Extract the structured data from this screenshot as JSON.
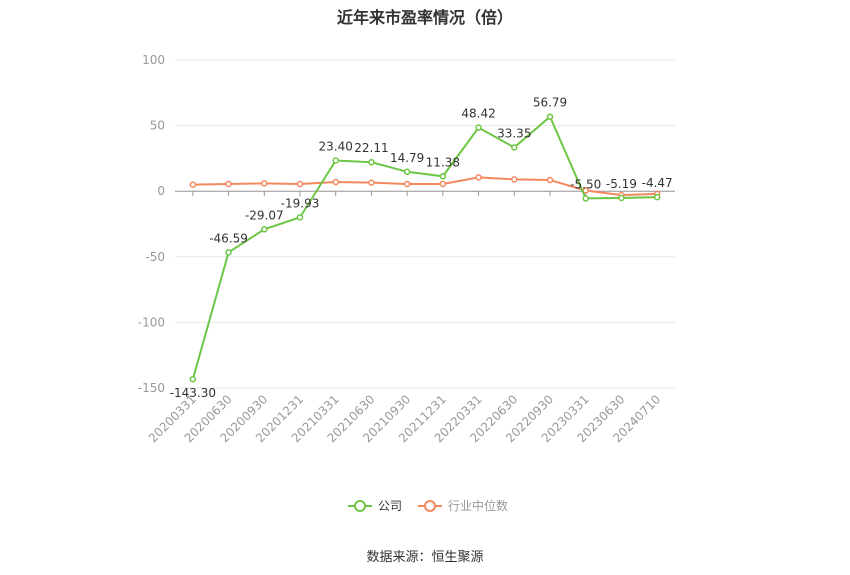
{
  "title": "近年来市盈率情况（倍）",
  "source": "数据来源：恒生聚源",
  "chart_data": {
    "type": "line",
    "title": "近年来市盈率情况（倍）",
    "categories": [
      "20200331",
      "20200630",
      "20200930",
      "20201231",
      "20210331",
      "20210630",
      "20210930",
      "20211231",
      "20220331",
      "20220630",
      "20220930",
      "20230331",
      "20230630",
      "20240710"
    ],
    "ylim": [
      -150,
      100
    ],
    "yticks": [
      100,
      50,
      0,
      -50,
      -100,
      -150
    ],
    "grid": true,
    "legend_position": "bottom",
    "series": [
      {
        "name": "公司",
        "color": "#6cc644",
        "values": [
          -143.3,
          -46.59,
          -29.07,
          -19.93,
          23.4,
          22.11,
          14.79,
          11.38,
          48.42,
          33.35,
          56.79,
          -5.5,
          -5.19,
          -4.47
        ],
        "labels": [
          "-143.30",
          "-46.59",
          "-29.07",
          "-19.93",
          "23.40",
          "22.11",
          "14.79",
          "11.38",
          "48.42",
          "33.35",
          "56.79",
          "-5.50",
          "-5.19",
          "-4.47"
        ]
      },
      {
        "name": "行业中位数",
        "color": "#f4895f",
        "values": [
          5.0,
          5.5,
          6.0,
          5.5,
          7.0,
          6.5,
          5.5,
          5.5,
          10.5,
          9.0,
          8.5,
          0.5,
          -3.0,
          -2.0
        ]
      }
    ]
  }
}
